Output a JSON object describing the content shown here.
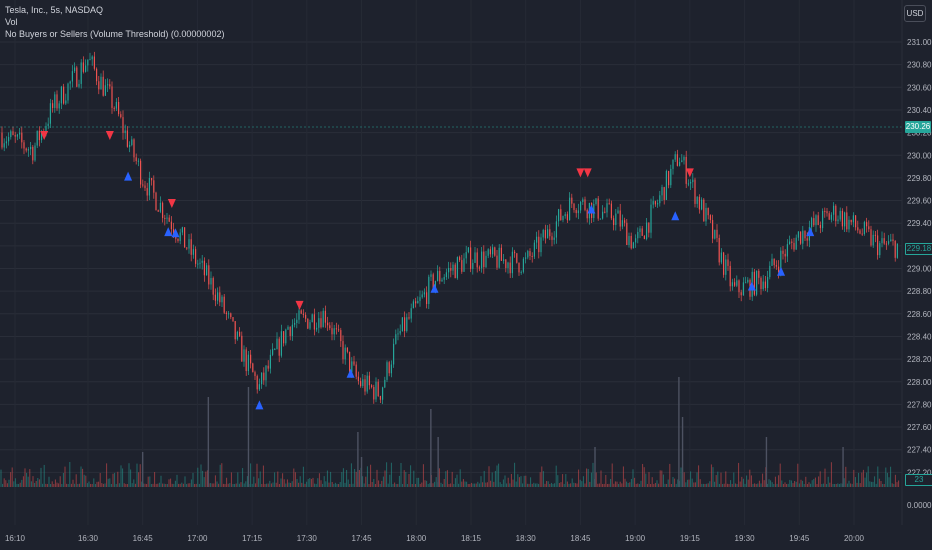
{
  "header": {
    "symbol_line": "Tesla, Inc., 5s, NASDAQ",
    "vol_label": "Vol",
    "indicator_label": "No Buyers or Sellers (Volume Threshold) (0.00000002)"
  },
  "currency_button": "USD",
  "price_badges": {
    "current_price": "230.26",
    "secondary_price": "229.18",
    "volume_value": "23"
  },
  "price_scale": [
    "231.00",
    "230.80",
    "230.60",
    "230.40",
    "230.20",
    "230.00",
    "229.80",
    "229.60",
    "229.40",
    "229.20",
    "229.00",
    "228.80",
    "228.60",
    "228.40",
    "228.20",
    "228.00",
    "227.80",
    "227.60",
    "227.40",
    "227.20",
    "0.0000"
  ],
  "time_axis": [
    "16:10",
    "16:30",
    "16:45",
    "17:00",
    "17:15",
    "17:30",
    "17:45",
    "18:00",
    "18:15",
    "18:30",
    "18:45",
    "19:00",
    "19:15",
    "19:30",
    "19:45",
    "20:00"
  ],
  "colors": {
    "background": "#1e222d",
    "up": "#26a69a",
    "down": "#ef5350",
    "seller_marker": "#f23645",
    "buyer_marker": "#2962ff"
  },
  "chart_data": {
    "type": "candlestick",
    "price_range": [
      227.2,
      231.0
    ],
    "trend_points": [
      {
        "t": "16:05",
        "p": 230.2
      },
      {
        "t": "16:15",
        "p": 230.05
      },
      {
        "t": "16:20",
        "p": 230.4
      },
      {
        "t": "16:30",
        "p": 230.85
      },
      {
        "t": "16:37",
        "p": 230.45
      },
      {
        "t": "16:45",
        "p": 229.8
      },
      {
        "t": "16:55",
        "p": 229.3
      },
      {
        "t": "17:05",
        "p": 228.8
      },
      {
        "t": "17:13",
        "p": 228.2
      },
      {
        "t": "17:17",
        "p": 227.95
      },
      {
        "t": "17:25",
        "p": 228.5
      },
      {
        "t": "17:35",
        "p": 228.6
      },
      {
        "t": "17:44",
        "p": 228.0
      },
      {
        "t": "17:50",
        "p": 227.9
      },
      {
        "t": "17:55",
        "p": 228.4
      },
      {
        "t": "18:05",
        "p": 228.9
      },
      {
        "t": "18:15",
        "p": 229.1
      },
      {
        "t": "18:30",
        "p": 229.05
      },
      {
        "t": "18:43",
        "p": 229.6
      },
      {
        "t": "18:55",
        "p": 229.45
      },
      {
        "t": "19:00",
        "p": 229.2
      },
      {
        "t": "19:05",
        "p": 229.5
      },
      {
        "t": "19:12",
        "p": 230.0
      },
      {
        "t": "19:20",
        "p": 229.4
      },
      {
        "t": "19:27",
        "p": 228.8
      },
      {
        "t": "19:35",
        "p": 228.9
      },
      {
        "t": "19:45",
        "p": 229.3
      },
      {
        "t": "19:55",
        "p": 229.5
      },
      {
        "t": "20:07",
        "p": 229.2
      }
    ],
    "seller_markers": [
      {
        "t": "16:18",
        "p": 230.17
      },
      {
        "t": "16:36",
        "p": 230.17
      },
      {
        "t": "16:53",
        "p": 229.57
      },
      {
        "t": "17:28",
        "p": 228.67
      },
      {
        "t": "18:45",
        "p": 229.84
      },
      {
        "t": "18:47",
        "p": 229.84
      },
      {
        "t": "19:15",
        "p": 229.84
      }
    ],
    "buyer_markers": [
      {
        "t": "16:41",
        "p": 229.82
      },
      {
        "t": "16:52",
        "p": 229.33
      },
      {
        "t": "16:54",
        "p": 229.32
      },
      {
        "t": "17:17",
        "p": 227.8
      },
      {
        "t": "17:42",
        "p": 228.08
      },
      {
        "t": "18:05",
        "p": 228.83
      },
      {
        "t": "18:48",
        "p": 229.53
      },
      {
        "t": "19:11",
        "p": 229.47
      },
      {
        "t": "19:32",
        "p": 228.85
      },
      {
        "t": "19:40",
        "p": 228.98
      },
      {
        "t": "19:48",
        "p": 229.33
      }
    ],
    "volume_spikes": [
      {
        "t": "16:45",
        "v": 0.35
      },
      {
        "t": "17:03",
        "v": 0.9
      },
      {
        "t": "17:14",
        "v": 1.0
      },
      {
        "t": "17:44",
        "v": 0.55
      },
      {
        "t": "17:45",
        "v": 0.3
      },
      {
        "t": "18:04",
        "v": 0.78
      },
      {
        "t": "18:06",
        "v": 0.5
      },
      {
        "t": "18:49",
        "v": 0.4
      },
      {
        "t": "19:12",
        "v": 1.1
      },
      {
        "t": "19:13",
        "v": 0.7
      },
      {
        "t": "19:36",
        "v": 0.5
      },
      {
        "t": "19:57",
        "v": 0.4
      }
    ]
  }
}
